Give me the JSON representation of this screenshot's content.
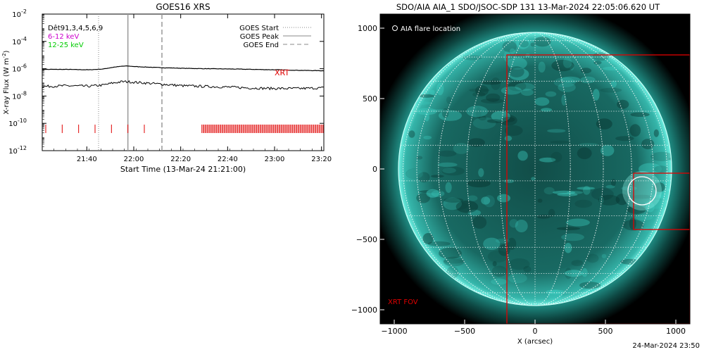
{
  "colors": {
    "axis": "#000000",
    "red": "#e00000",
    "magenta": "#cc00cc",
    "green": "#00cc00",
    "sun": "#3fd3c6",
    "sun_dark": "#0b3a36"
  },
  "chart_data": [
    {
      "type": "line",
      "title": "GOES16 XRS",
      "xlabel": "Start Time (13-Mar-24 21:21:00)",
      "ylabel": "X-ray Flux (W m",
      "ylabel_exp": "-2",
      "ylabel_end": ")",
      "y_log": true,
      "x_ticks": [
        {
          "t": "21:40",
          "m": 19
        },
        {
          "t": "22:00",
          "m": 39
        },
        {
          "t": "22:20",
          "m": 59
        },
        {
          "t": "22:40",
          "m": 79
        },
        {
          "t": "23:00",
          "m": 99
        },
        {
          "t": "23:20",
          "m": 119
        }
      ],
      "xlim_min": [
        0,
        120
      ],
      "y_ticks": [
        {
          "mant": "10",
          "exp": "-2",
          "v": -2
        },
        {
          "mant": "10",
          "exp": "-4",
          "v": -4
        },
        {
          "mant": "10",
          "exp": "-6",
          "v": -6
        },
        {
          "mant": "10",
          "exp": "-8",
          "v": -8
        },
        {
          "mant": "10",
          "exp": "-10",
          "v": -10
        },
        {
          "mant": "10",
          "exp": "-12",
          "v": -12
        }
      ],
      "ylim_log": [
        -12,
        -2
      ],
      "legend_left": [
        {
          "text": "Dêt91,3,4,5,6,9",
          "color": "#000000"
        },
        {
          "text": "6-12 keV",
          "color": "#cc00cc"
        },
        {
          "text": "12-25 keV",
          "color": "#00cc00"
        }
      ],
      "legend_right": [
        {
          "text": "GOES Start",
          "style": "dotted"
        },
        {
          "text": "GOES Peak",
          "style": "solid"
        },
        {
          "text": "GOES End",
          "style": "dashed"
        }
      ],
      "xrt_label": "XRT",
      "goes_start_min": 24,
      "goes_peak_min": 36.5,
      "goes_end_min": 51,
      "series": [
        {
          "x": [
            0,
            10,
            20,
            26,
            30,
            34,
            36,
            40,
            50,
            60,
            70,
            80,
            90,
            100,
            110,
            120
          ],
          "y_log": [
            -6.05,
            -6.05,
            -6.08,
            -6.02,
            -5.9,
            -5.82,
            -5.8,
            -5.85,
            -5.92,
            -5.97,
            -6.0,
            -6.02,
            -6.05,
            -6.08,
            -6.12,
            -6.15
          ]
        },
        {
          "x": [
            0,
            10,
            20,
            26,
            30,
            34,
            36,
            40,
            50,
            60,
            70,
            80,
            90,
            100,
            110,
            120
          ],
          "y_log": [
            -7.3,
            -7.25,
            -7.28,
            -7.2,
            -7.05,
            -6.95,
            -6.95,
            -7.0,
            -7.12,
            -7.25,
            -7.3,
            -7.35,
            -7.42,
            -7.45,
            -7.45,
            -7.4
          ]
        }
      ],
      "xrt_sparse_min": [
        1.5,
        8.5,
        15.5,
        22.5,
        29.5,
        36.5,
        43.5
      ],
      "xrt_dense_min": [
        68,
        120
      ],
      "xrt_level_log": -10.4
    },
    {
      "type": "heatmap",
      "title": "SDO/AIA AIA_1 SDO/JSOC-SDP 131 13-Mar-2024 22:05:06.620 UT",
      "xlabel": "X (arcsec)",
      "x_ticks": [
        "−1000",
        "−500",
        "0",
        "500",
        "1000"
      ],
      "x_tick_vals": [
        -1000,
        -500,
        0,
        500,
        1000
      ],
      "y_ticks": [
        "1000",
        "500",
        "0",
        "−500",
        "−1000"
      ],
      "y_tick_vals": [
        1000,
        500,
        0,
        -500,
        -1000
      ],
      "xlim": [
        -1100,
        1100
      ],
      "ylim": [
        -1100,
        1100
      ],
      "solar_radius": 970,
      "legend": "AIA flare location",
      "fov_label": "XRT FOV",
      "xrt_fov": {
        "x1": -200,
        "x2": 1100,
        "y1": -1100,
        "y2": 810
      },
      "zoom_box": {
        "x1": 700,
        "x2": 1100,
        "y1": -430,
        "y2": -30
      },
      "flare": {
        "x": 760,
        "y": -155,
        "r": 100
      }
    }
  ],
  "stamp": "24-Mar-2024 23:50"
}
